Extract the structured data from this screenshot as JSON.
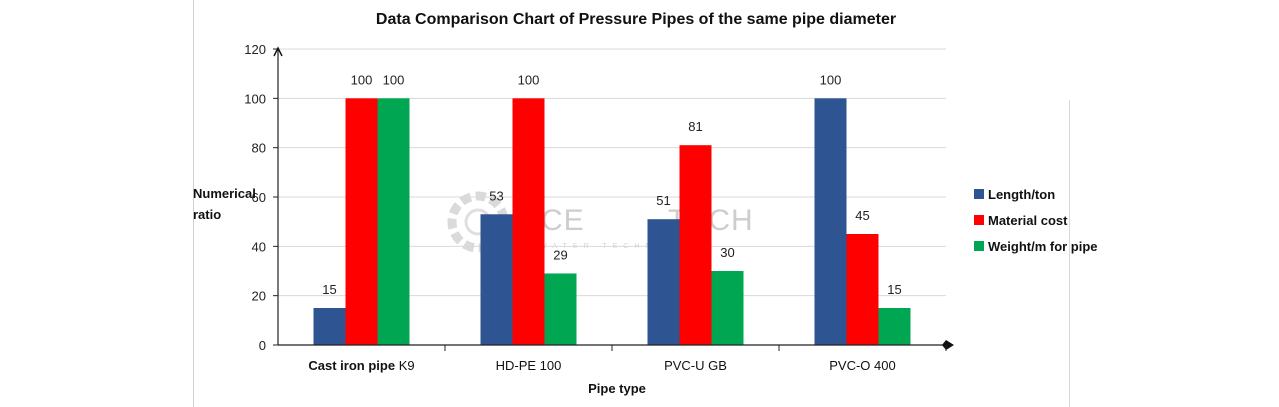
{
  "chart_data": {
    "type": "bar",
    "title": "Data Comparison Chart of Pressure Pipes of the same pipe diameter",
    "categories": [
      {
        "bold": "Cast iron pipe",
        "rest": " K9"
      },
      {
        "bold": "",
        "rest": "HD-PE 100"
      },
      {
        "bold": "",
        "rest": "PVC-U  GB"
      },
      {
        "bold": "",
        "rest": "PVC-O 400"
      }
    ],
    "series": [
      {
        "name": "Length/ton",
        "color": "#2e5591",
        "values": [
          15,
          53,
          51,
          100
        ]
      },
      {
        "name": "Material cost",
        "color": "#ff0000",
        "values": [
          100,
          100,
          81,
          45
        ]
      },
      {
        "name": "Weight/m for pipe",
        "color": "#00a651",
        "values": [
          100,
          29,
          30,
          15
        ]
      }
    ],
    "xlabel": "Pipe type",
    "ylabel": [
      "Numerical",
      "ratio"
    ],
    "ylim": [
      0,
      120
    ],
    "yticks": [
      0,
      20,
      40,
      60,
      80,
      100,
      120
    ],
    "grid": true,
    "legend_position": "right"
  },
  "watermark": {
    "text": "ACE",
    "text2": "TECH",
    "sub": "WATER TECHNOLOGY"
  }
}
